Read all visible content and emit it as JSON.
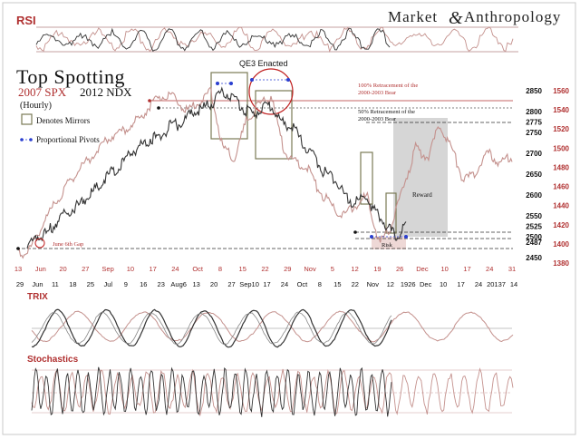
{
  "brand": {
    "word1": "Market",
    "word2": "Anthropology",
    "mark": "&"
  },
  "header": {
    "title": "Top Spotting",
    "subtitle_spx": "2007 SPX",
    "subtitle_ndx": "2012 NDX",
    "timeframe": "(Hourly)"
  },
  "legend": {
    "mirrors": "Denotes Mirrors",
    "pivots": "Proportional Pivots"
  },
  "annotations": {
    "qe3": "QE3 Enacted",
    "retrace_100_line1": "100% Retracement of the",
    "retrace_100_line2": "2000-2003 Bear",
    "retrace_50_line1": "50% Retracement of the",
    "retrace_50_line2": "2000-2003 Bear",
    "reward": "Reward",
    "risk": "Risk",
    "gap": "June 6th Gap"
  },
  "colors": {
    "ndx_series": "#333333",
    "spx_series": "#c4918d",
    "accent_red": "#b03030",
    "pivot_blue": "#2a3fd0",
    "mirror_box": "#7a7a55",
    "reward_zone": "#d6d6d6",
    "risk_zone": "#eed8d6"
  },
  "panels": {
    "rsi": "RSI",
    "trix": "TRIX",
    "stoch": "Stochastics"
  },
  "chart_data": {
    "type": "line",
    "title": "Top Spotting",
    "subtitle": "2007 SPX 2012 NDX (Hourly)",
    "y_axis_ndx": {
      "ticks": [
        "2850",
        "2800",
        "2775",
        "2750",
        "2700",
        "2650",
        "2600",
        "2550",
        "2525",
        "2500",
        "2487",
        "2450"
      ],
      "range": [
        2450,
        2870
      ]
    },
    "y_axis_spx": {
      "ticks": [
        "1560",
        "1540",
        "1520",
        "1500",
        "1480",
        "1460",
        "1440",
        "1420",
        "1400",
        "1380"
      ],
      "range": [
        1380,
        1570
      ]
    },
    "x_axis_spx_dates": [
      "13",
      "Jun",
      "20",
      "27",
      "Sep",
      "10",
      "17",
      "24",
      "Oct",
      "8",
      "15",
      "22",
      "29",
      "Nov",
      "5",
      "12",
      "19",
      "26",
      "Dec",
      "10",
      "17",
      "24",
      "31"
    ],
    "x_axis_ndx_dates": [
      "29",
      "Jun",
      "11",
      "18",
      "25",
      "Jul",
      "9",
      "16",
      "23",
      "Aug6",
      "13",
      "20",
      "27",
      "Sep10",
      "17",
      "24",
      "Oct",
      "8",
      "15",
      "22",
      "Nov",
      "12",
      "1926",
      "Dec",
      "10",
      "17",
      "24",
      "20137",
      "14"
    ],
    "levels": [
      2850,
      2800,
      2775,
      2525,
      2500,
      2487
    ],
    "series": [
      {
        "name": "2012 NDX",
        "values": [
          2475,
          2500,
          2510,
          2540,
          2560,
          2575,
          2600,
          2620,
          2650,
          2665,
          2700,
          2715,
          2735,
          2740,
          2765,
          2770,
          2795,
          2805,
          2820,
          2845,
          2840,
          2810,
          2790,
          2815,
          2810,
          2770,
          2760,
          2720,
          2690,
          2655,
          2640,
          2600,
          2580,
          2600,
          2560,
          2530,
          2500,
          2525
        ]
      },
      {
        "name": "2007 SPX",
        "values": [
          1388,
          1395,
          1420,
          1440,
          1460,
          1478,
          1490,
          1505,
          1515,
          1520,
          1530,
          1545,
          1555,
          1552,
          1538,
          1548,
          1560,
          1500,
          1490,
          1530,
          1545,
          1555,
          1500,
          1485,
          1480,
          1455,
          1440,
          1430,
          1440,
          1450,
          1400,
          1420,
          1460,
          1500,
          1490,
          1525,
          1500,
          1465,
          1475,
          1495,
          1485,
          1490
        ]
      }
    ],
    "rsi_levels": [
      70,
      30
    ],
    "legend_position": "top-left"
  }
}
